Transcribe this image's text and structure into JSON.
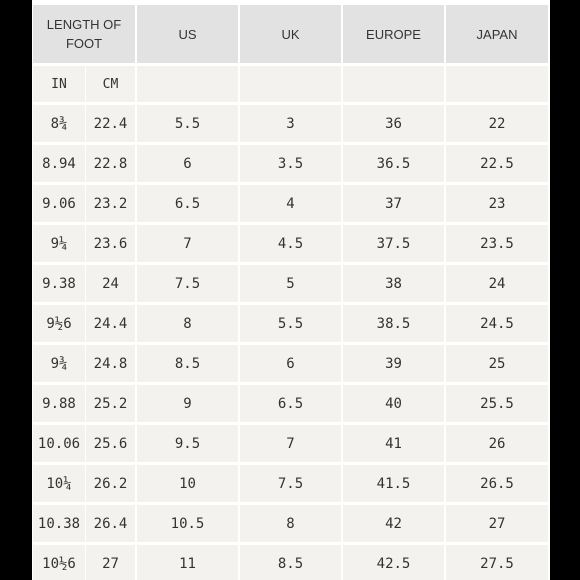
{
  "table": {
    "header": [
      "LENGTH OF FOOT",
      "US",
      "UK",
      "EUROPE",
      "JAPAN"
    ],
    "subheader": [
      "IN",
      "CM"
    ],
    "rows": [
      [
        "8¾",
        "22.4",
        "5.5",
        "3",
        "36",
        "22"
      ],
      [
        "8.94",
        "22.8",
        "6",
        "3.5",
        "36.5",
        "22.5"
      ],
      [
        "9.06",
        "23.2",
        "6.5",
        "4",
        "37",
        "23"
      ],
      [
        "9¼",
        "23.6",
        "7",
        "4.5",
        "37.5",
        "23.5"
      ],
      [
        "9.38",
        "24",
        "7.5",
        "5",
        "38",
        "24"
      ],
      [
        "9½6",
        "24.4",
        "8",
        "5.5",
        "38.5",
        "24.5"
      ],
      [
        "9¾",
        "24.8",
        "8.5",
        "6",
        "39",
        "25"
      ],
      [
        "9.88",
        "25.2",
        "9",
        "6.5",
        "40",
        "25.5"
      ],
      [
        "10.06",
        "25.6",
        "9.5",
        "7",
        "41",
        "26"
      ],
      [
        "10¼",
        "26.2",
        "10",
        "7.5",
        "41.5",
        "26.5"
      ],
      [
        "10.38",
        "26.4",
        "10.5",
        "8",
        "42",
        "27"
      ],
      [
        "10½6",
        "27",
        "11",
        "8.5",
        "42.5",
        "27.5"
      ]
    ]
  }
}
